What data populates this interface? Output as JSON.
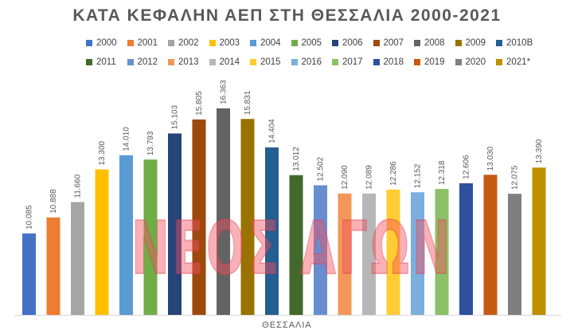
{
  "chart_data": {
    "type": "bar",
    "title": "ΚΑΤΑ ΚΕΦΑΛΗΝ ΑΕΠ ΣΤΗ ΘΕΣΣΑΛΙΑ 2000-2021",
    "xlabel": "ΘΕΣΣΑΛΙΑ",
    "ylabel": "",
    "category": "ΘΕΣΣΑΛΙΑ",
    "ylim": [
      6000,
      17000
    ],
    "grid": false,
    "legend_position": "top",
    "series": [
      {
        "name": "2000",
        "value": 10085,
        "label": "10.085",
        "color": "#4472C4"
      },
      {
        "name": "2001",
        "value": 10888,
        "label": "10.888",
        "color": "#ED7D31"
      },
      {
        "name": "2002",
        "value": 11660,
        "label": "11.660",
        "color": "#A5A5A5"
      },
      {
        "name": "2003",
        "value": 13300,
        "label": "13.300",
        "color": "#FFC000"
      },
      {
        "name": "2004",
        "value": 14010,
        "label": "14.010",
        "color": "#5B9BD5"
      },
      {
        "name": "2005",
        "value": 13793,
        "label": "13.793",
        "color": "#70AD47"
      },
      {
        "name": "2006",
        "value": 15103,
        "label": "15.103",
        "color": "#264478"
      },
      {
        "name": "2007",
        "value": 15805,
        "label": "15.805",
        "color": "#9E480E"
      },
      {
        "name": "2008",
        "value": 16363,
        "label": "16.363",
        "color": "#636363"
      },
      {
        "name": "2009",
        "value": 15831,
        "label": "15.831",
        "color": "#997300"
      },
      {
        "name": "2010B",
        "value": 14404,
        "label": "14.404",
        "color": "#255E91"
      },
      {
        "name": "2011",
        "value": 13012,
        "label": "13.012",
        "color": "#43682B"
      },
      {
        "name": "2012",
        "value": 12502,
        "label": "12.502",
        "color": "#698ED0"
      },
      {
        "name": "2013",
        "value": 12090,
        "label": "12.090",
        "color": "#F1975A"
      },
      {
        "name": "2014",
        "value": 12089,
        "label": "12.089",
        "color": "#B7B7B7"
      },
      {
        "name": "2015",
        "value": 12286,
        "label": "12.286",
        "color": "#FFCD33"
      },
      {
        "name": "2016",
        "value": 12152,
        "label": "12.152",
        "color": "#7CAFDD"
      },
      {
        "name": "2017",
        "value": 12318,
        "label": "12.318",
        "color": "#8CC168"
      },
      {
        "name": "2018",
        "value": 12606,
        "label": "12.606",
        "color": "#2F4F9F"
      },
      {
        "name": "2019",
        "value": 13030,
        "label": "13.030",
        "color": "#C55A11"
      },
      {
        "name": "2020",
        "value": 12075,
        "label": "12.075",
        "color": "#7F7F7F"
      },
      {
        "name": "2021*",
        "value": 13390,
        "label": "13.390",
        "color": "#BF9000"
      }
    ]
  },
  "watermark": {
    "text": "ΝΕΟΣ ΑΓΩΝ"
  }
}
